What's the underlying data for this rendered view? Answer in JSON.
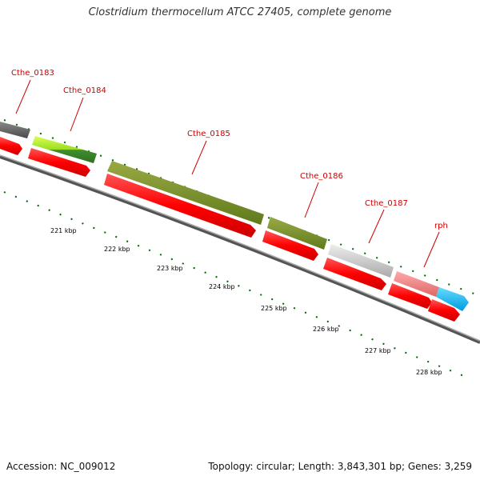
{
  "title": "Clostridium thermocellum ATCC 27405, complete genome",
  "footer": {
    "accession": "Accession: NC_009012",
    "summary": "Topology: circular; Length: 3,843,301 bp; Genes: 3,259"
  },
  "colors": {
    "gene_label": "#cc0000",
    "cds": "#ff0000",
    "backbone": "#777777",
    "tick": "#006600"
  },
  "gene_labels": [
    {
      "id": "cthe-0183",
      "text": "Cthe_0183"
    },
    {
      "id": "cthe-0184",
      "text": "Cthe_0184"
    },
    {
      "id": "cthe-0185",
      "text": "Cthe_0185"
    },
    {
      "id": "cthe-0186",
      "text": "Cthe_0186"
    },
    {
      "id": "cthe-0187",
      "text": "Cthe_0187"
    },
    {
      "id": "rph",
      "text": "rph"
    }
  ],
  "ruler_labels": [
    "221 kbp",
    "222 kbp",
    "223 kbp",
    "224 kbp",
    "225 kbp",
    "226 kbp",
    "227 kbp",
    "228 kbp"
  ]
}
